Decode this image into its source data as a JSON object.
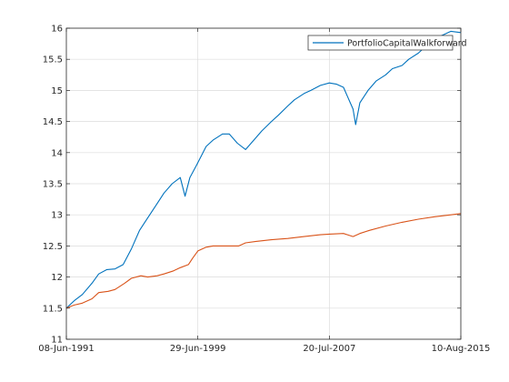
{
  "chart_data": {
    "type": "line",
    "title": "",
    "xlabel": "",
    "ylabel": "",
    "x_ticks": [
      "08-Jun-1991",
      "29-Jun-1999",
      "20-Jul-2007",
      "10-Aug-2015"
    ],
    "xlim": [
      "1991-06-08",
      "2015-08-10"
    ],
    "ylim": [
      11,
      16
    ],
    "y_ticks": [
      "11",
      "11.5",
      "12",
      "12.5",
      "13",
      "13.5",
      "14",
      "14.5",
      "15",
      "15.5",
      "16"
    ],
    "grid": true,
    "legend": {
      "placement": "top-right",
      "entries": [
        "PortfolioCapitalWalkforward"
      ]
    },
    "series": [
      {
        "name": "PortfolioCapitalWalkforward",
        "color": "#0072bd",
        "points": [
          [
            "1991-06-08",
            11.5
          ],
          [
            "1991-12-01",
            11.62
          ],
          [
            "1992-06-01",
            11.72
          ],
          [
            "1993-01-01",
            11.9
          ],
          [
            "1993-06-01",
            12.05
          ],
          [
            "1993-12-01",
            12.12
          ],
          [
            "1994-06-01",
            12.13
          ],
          [
            "1994-12-01",
            12.2
          ],
          [
            "1995-06-01",
            12.45
          ],
          [
            "1995-12-01",
            12.75
          ],
          [
            "1996-06-01",
            12.95
          ],
          [
            "1996-12-01",
            13.15
          ],
          [
            "1997-06-01",
            13.35
          ],
          [
            "1997-12-01",
            13.5
          ],
          [
            "1998-06-01",
            13.6
          ],
          [
            "1998-09-15",
            13.3
          ],
          [
            "1999-01-01",
            13.6
          ],
          [
            "1999-06-01",
            13.8
          ],
          [
            "2000-01-01",
            14.1
          ],
          [
            "2000-06-01",
            14.2
          ],
          [
            "2001-01-01",
            14.3
          ],
          [
            "2001-06-01",
            14.3
          ],
          [
            "2001-12-01",
            14.15
          ],
          [
            "2002-06-01",
            14.05
          ],
          [
            "2002-12-01",
            14.2
          ],
          [
            "2003-06-01",
            14.35
          ],
          [
            "2004-01-01",
            14.5
          ],
          [
            "2004-06-01",
            14.6
          ],
          [
            "2005-01-01",
            14.75
          ],
          [
            "2005-06-01",
            14.85
          ],
          [
            "2006-01-01",
            14.95
          ],
          [
            "2006-06-01",
            15.0
          ],
          [
            "2007-01-01",
            15.08
          ],
          [
            "2007-07-20",
            15.12
          ],
          [
            "2008-01-01",
            15.1
          ],
          [
            "2008-06-01",
            15.05
          ],
          [
            "2008-11-01",
            14.8
          ],
          [
            "2009-01-01",
            14.7
          ],
          [
            "2009-03-01",
            14.45
          ],
          [
            "2009-06-01",
            14.8
          ],
          [
            "2009-12-01",
            15.0
          ],
          [
            "2010-06-01",
            15.15
          ],
          [
            "2011-01-01",
            15.25
          ],
          [
            "2011-06-01",
            15.35
          ],
          [
            "2012-01-01",
            15.4
          ],
          [
            "2012-06-01",
            15.5
          ],
          [
            "2013-01-01",
            15.6
          ],
          [
            "2013-06-01",
            15.7
          ],
          [
            "2014-01-01",
            15.82
          ],
          [
            "2014-06-01",
            15.88
          ],
          [
            "2015-01-01",
            15.95
          ],
          [
            "2015-08-10",
            15.93
          ]
        ]
      },
      {
        "color": "#d95319",
        "points": [
          [
            "1991-06-08",
            11.5
          ],
          [
            "1991-12-01",
            11.55
          ],
          [
            "1992-06-01",
            11.58
          ],
          [
            "1993-01-01",
            11.65
          ],
          [
            "1993-06-01",
            11.75
          ],
          [
            "1994-01-01",
            11.77
          ],
          [
            "1994-06-01",
            11.8
          ],
          [
            "1995-01-01",
            11.9
          ],
          [
            "1995-06-01",
            11.98
          ],
          [
            "1996-01-01",
            12.02
          ],
          [
            "1996-06-01",
            12.0
          ],
          [
            "1997-01-01",
            12.02
          ],
          [
            "1997-06-01",
            12.05
          ],
          [
            "1998-01-01",
            12.1
          ],
          [
            "1998-06-01",
            12.15
          ],
          [
            "1998-12-01",
            12.2
          ],
          [
            "1999-03-01",
            12.3
          ],
          [
            "1999-06-29",
            12.42
          ],
          [
            "2000-01-01",
            12.48
          ],
          [
            "2000-06-01",
            12.5
          ],
          [
            "2001-01-01",
            12.5
          ],
          [
            "2002-01-01",
            12.5
          ],
          [
            "2002-06-01",
            12.55
          ],
          [
            "2003-01-01",
            12.57
          ],
          [
            "2004-01-01",
            12.6
          ],
          [
            "2005-01-01",
            12.62
          ],
          [
            "2006-01-01",
            12.65
          ],
          [
            "2007-01-01",
            12.68
          ],
          [
            "2007-07-20",
            12.69
          ],
          [
            "2008-06-01",
            12.7
          ],
          [
            "2009-01-01",
            12.65
          ],
          [
            "2009-06-01",
            12.7
          ],
          [
            "2010-01-01",
            12.75
          ],
          [
            "2011-01-01",
            12.82
          ],
          [
            "2012-01-01",
            12.88
          ],
          [
            "2013-01-01",
            12.93
          ],
          [
            "2014-01-01",
            12.97
          ],
          [
            "2015-01-01",
            13.0
          ],
          [
            "2015-08-10",
            13.02
          ]
        ]
      }
    ]
  }
}
